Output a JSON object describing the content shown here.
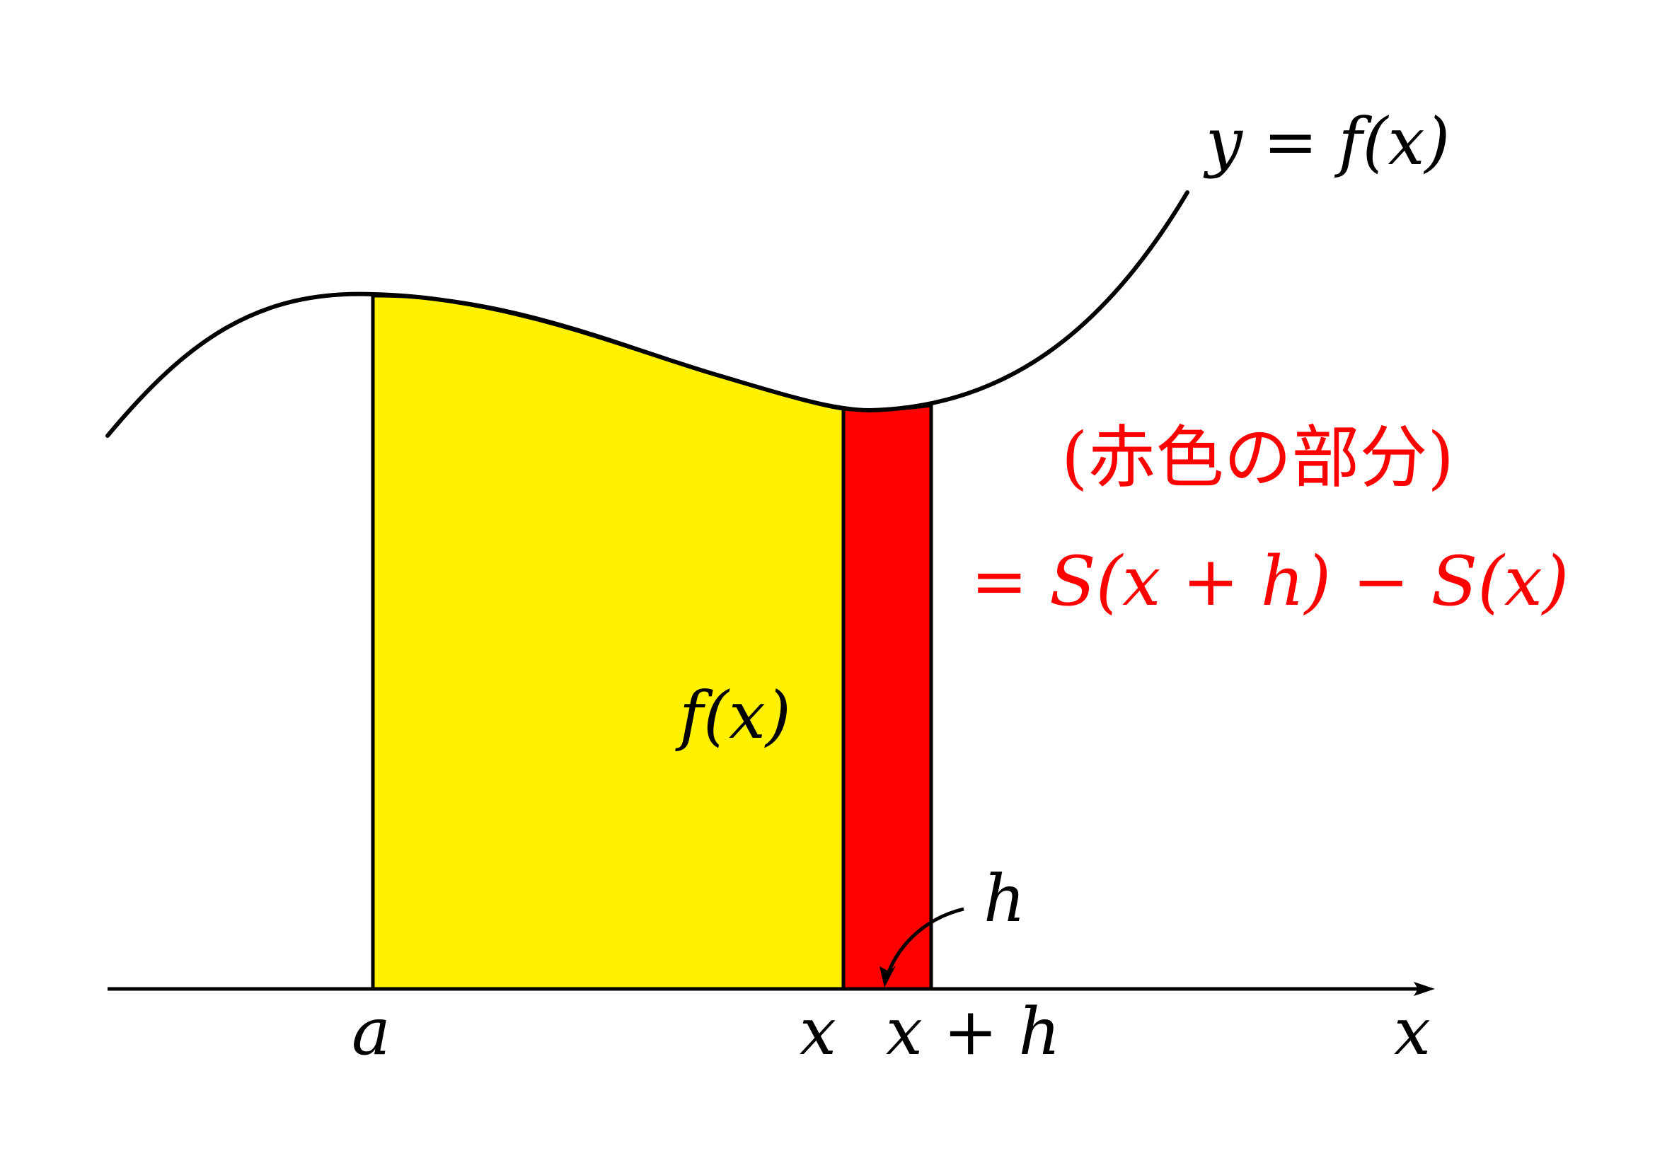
{
  "diagram": {
    "curve_label": "y = f(x)",
    "height_label": "f(x)",
    "width_label": "h",
    "axis": {
      "label": "x",
      "ticks": {
        "a": "a",
        "x": "x",
        "x_plus_h": "x + h"
      }
    },
    "annotation": {
      "line1": "(赤色の部分)",
      "line2": "= S(x + h) − S(x)"
    },
    "colors": {
      "integral_region": "#FFF200",
      "increment_region": "#FF0000",
      "annotation_text": "#FF0000",
      "curve": "#000000",
      "axis": "#000000"
    }
  }
}
